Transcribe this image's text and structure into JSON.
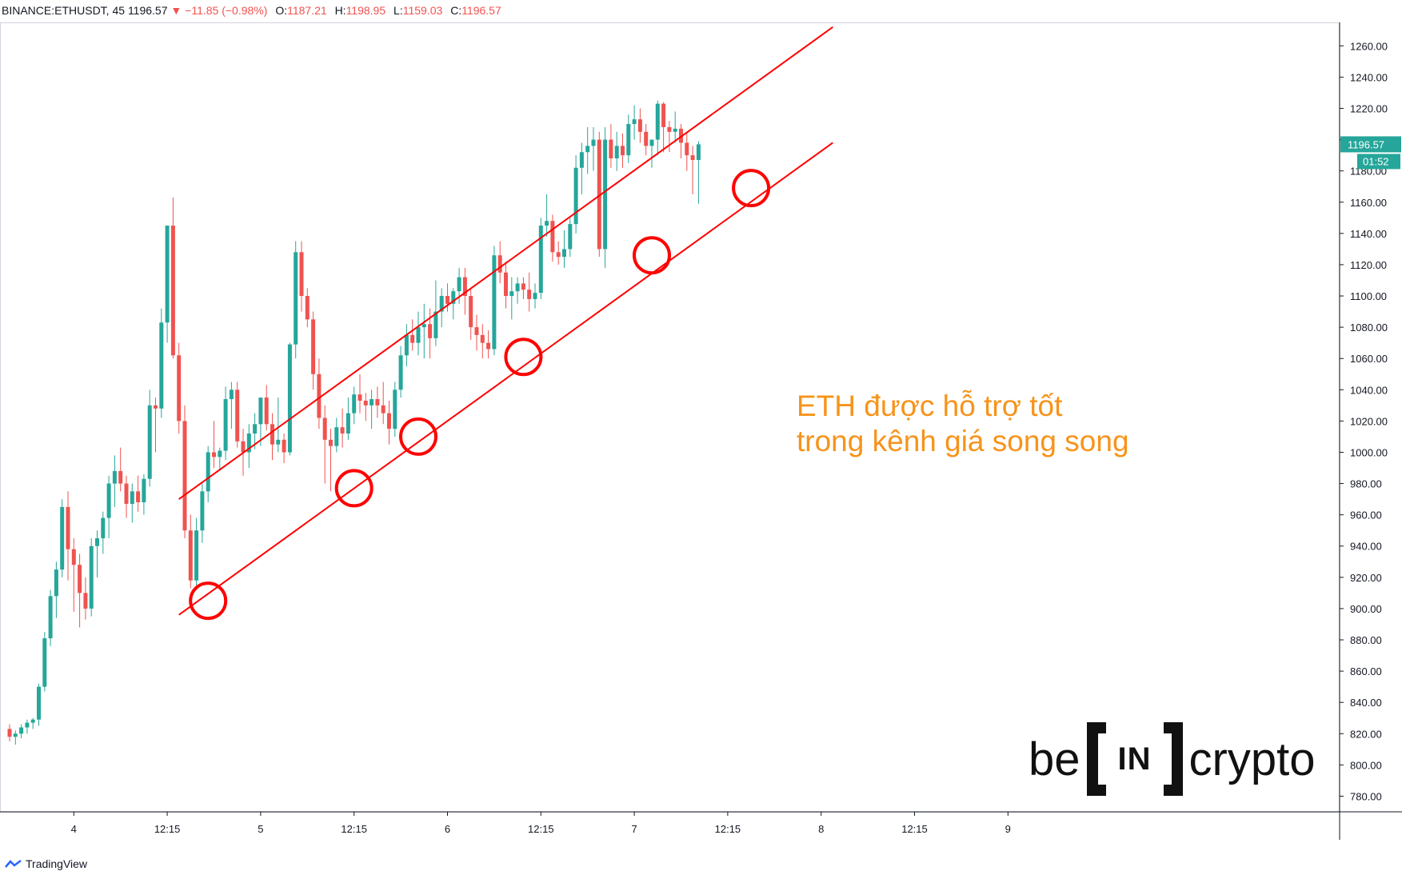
{
  "header": {
    "symbol": "BINANCE:ETHUSDT, 45",
    "price": "1196.57",
    "arrow": "▼",
    "change": "−11.85 (−0.98%)",
    "o_label": "O:",
    "o_value": "1187.21",
    "h_label": "H:",
    "h_value": "1198.95",
    "l_label": "L:",
    "l_value": "1159.03",
    "c_label": "C:",
    "c_value": "1196.57"
  },
  "price_tag": {
    "value": "1196.57",
    "countdown": "01:52",
    "color": "#26a69a"
  },
  "annotation": {
    "line1": "ETH được hỗ trợ tốt",
    "line2": "trong kênh giá song song",
    "color": "#f7931a"
  },
  "logo": {
    "left": "be",
    "box": "IN",
    "right": "crypto"
  },
  "footer": {
    "brand": "TradingView"
  },
  "chart_data": {
    "type": "candlestick",
    "title": "",
    "ylim": [
      770,
      1275
    ],
    "y_ticks": [
      "1260.00",
      "1240.00",
      "1220.00",
      "1200.00",
      "1180.00",
      "1160.00",
      "1140.00",
      "1120.00",
      "1100.00",
      "1080.00",
      "1060.00",
      "1040.00",
      "1020.00",
      "1000.00",
      "980.00",
      "960.00",
      "940.00",
      "920.00",
      "900.00",
      "880.00",
      "860.00",
      "840.00",
      "820.00",
      "800.00",
      "780.00"
    ],
    "x_ticks": [
      {
        "label": "4",
        "bar": 11
      },
      {
        "label": "12:15",
        "bar": 27
      },
      {
        "label": "5",
        "bar": 43
      },
      {
        "label": "12:15",
        "bar": 59
      },
      {
        "label": "6",
        "bar": 75
      },
      {
        "label": "12:15",
        "bar": 91
      },
      {
        "label": "7",
        "bar": 107
      },
      {
        "label": "12:15",
        "bar": 123
      },
      {
        "label": "8",
        "bar": 139
      },
      {
        "label": "12:15",
        "bar": 155
      },
      {
        "label": "9",
        "bar": 171
      }
    ],
    "colors": {
      "up": "#26a69a",
      "down": "#ef5350",
      "channel": "#ff0000"
    },
    "candles": [
      [
        823,
        826,
        815,
        818
      ],
      [
        818,
        822,
        813,
        820
      ],
      [
        820,
        826,
        817,
        824
      ],
      [
        824,
        829,
        820,
        827
      ],
      [
        827,
        830,
        823,
        829
      ],
      [
        829,
        852,
        825,
        850
      ],
      [
        850,
        885,
        847,
        881
      ],
      [
        881,
        912,
        876,
        908
      ],
      [
        908,
        930,
        894,
        925
      ],
      [
        925,
        970,
        920,
        965
      ],
      [
        965,
        975,
        918,
        938
      ],
      [
        938,
        945,
        898,
        928
      ],
      [
        928,
        935,
        888,
        910
      ],
      [
        910,
        920,
        893,
        900
      ],
      [
        900,
        945,
        895,
        940
      ],
      [
        940,
        950,
        920,
        945
      ],
      [
        945,
        962,
        935,
        958
      ],
      [
        958,
        985,
        945,
        980
      ],
      [
        980,
        998,
        965,
        988
      ],
      [
        988,
        1003,
        975,
        980
      ],
      [
        980,
        985,
        958,
        967
      ],
      [
        967,
        980,
        955,
        975
      ],
      [
        975,
        985,
        962,
        968
      ],
      [
        968,
        986,
        960,
        983
      ],
      [
        983,
        1040,
        978,
        1030
      ],
      [
        1030,
        1035,
        1000,
        1028
      ],
      [
        1028,
        1092,
        1022,
        1083
      ],
      [
        1083,
        1140,
        1070,
        1145
      ],
      [
        1145,
        1163,
        1060,
        1062
      ],
      [
        1062,
        1070,
        1012,
        1020
      ],
      [
        1020,
        1030,
        945,
        950
      ],
      [
        950,
        960,
        913,
        918
      ],
      [
        918,
        958,
        912,
        950
      ],
      [
        950,
        980,
        942,
        975
      ],
      [
        975,
        1004,
        968,
        1000
      ],
      [
        1000,
        1020,
        990,
        997
      ],
      [
        997,
        1003,
        988,
        1001
      ],
      [
        1001,
        1042,
        995,
        1034
      ],
      [
        1034,
        1045,
        1015,
        1040
      ],
      [
        1040,
        1045,
        1003,
        1007
      ],
      [
        1007,
        1015,
        985,
        1000
      ],
      [
        1000,
        1018,
        990,
        1012
      ],
      [
        1012,
        1025,
        1002,
        1018
      ],
      [
        1018,
        1030,
        1004,
        1035
      ],
      [
        1035,
        1043,
        1014,
        1018
      ],
      [
        1018,
        1025,
        995,
        1005
      ],
      [
        1005,
        1035,
        1000,
        1008
      ],
      [
        1008,
        1012,
        993,
        1000
      ],
      [
        1000,
        1070,
        998,
        1069
      ],
      [
        1069,
        1135,
        1060,
        1128
      ],
      [
        1128,
        1135,
        1090,
        1100
      ],
      [
        1100,
        1105,
        1080,
        1085
      ],
      [
        1085,
        1090,
        1040,
        1050
      ],
      [
        1050,
        1060,
        1015,
        1022
      ],
      [
        1022,
        1030,
        980,
        1008
      ],
      [
        1008,
        1015,
        975,
        1004
      ],
      [
        1004,
        1022,
        1000,
        1016
      ],
      [
        1016,
        1028,
        1003,
        1012
      ],
      [
        1012,
        1035,
        1008,
        1025
      ],
      [
        1025,
        1042,
        1018,
        1037
      ],
      [
        1037,
        1050,
        1025,
        1033
      ],
      [
        1033,
        1038,
        1020,
        1030
      ],
      [
        1030,
        1040,
        1015,
        1034
      ],
      [
        1034,
        1042,
        1022,
        1030
      ],
      [
        1030,
        1045,
        1018,
        1025
      ],
      [
        1025,
        1033,
        1005,
        1015
      ],
      [
        1015,
        1045,
        1010,
        1040
      ],
      [
        1040,
        1068,
        1035,
        1062
      ],
      [
        1062,
        1082,
        1055,
        1075
      ],
      [
        1075,
        1085,
        1065,
        1070
      ],
      [
        1070,
        1090,
        1062,
        1080
      ],
      [
        1080,
        1095,
        1060,
        1082
      ],
      [
        1082,
        1092,
        1060,
        1073
      ],
      [
        1073,
        1110,
        1068,
        1090
      ],
      [
        1090,
        1105,
        1080,
        1100
      ],
      [
        1100,
        1108,
        1090,
        1095
      ],
      [
        1095,
        1105,
        1085,
        1103
      ],
      [
        1103,
        1118,
        1095,
        1112
      ],
      [
        1112,
        1118,
        1088,
        1100
      ],
      [
        1100,
        1105,
        1072,
        1080
      ],
      [
        1080,
        1088,
        1065,
        1075
      ],
      [
        1075,
        1082,
        1060,
        1070
      ],
      [
        1070,
        1078,
        1060,
        1066
      ],
      [
        1066,
        1132,
        1062,
        1126
      ],
      [
        1126,
        1135,
        1108,
        1115
      ],
      [
        1115,
        1122,
        1092,
        1100
      ],
      [
        1100,
        1112,
        1085,
        1103
      ],
      [
        1103,
        1112,
        1095,
        1108
      ],
      [
        1108,
        1112,
        1098,
        1104
      ],
      [
        1104,
        1115,
        1090,
        1098
      ],
      [
        1098,
        1108,
        1092,
        1102
      ],
      [
        1102,
        1150,
        1098,
        1145
      ],
      [
        1145,
        1165,
        1138,
        1148
      ],
      [
        1148,
        1152,
        1122,
        1128
      ],
      [
        1128,
        1135,
        1120,
        1125
      ],
      [
        1125,
        1142,
        1118,
        1130
      ],
      [
        1130,
        1150,
        1125,
        1146
      ],
      [
        1146,
        1190,
        1140,
        1182
      ],
      [
        1182,
        1198,
        1165,
        1192
      ],
      [
        1192,
        1208,
        1178,
        1196
      ],
      [
        1196,
        1208,
        1180,
        1200
      ],
      [
        1200,
        1205,
        1125,
        1130
      ],
      [
        1130,
        1208,
        1118,
        1200
      ],
      [
        1200,
        1210,
        1182,
        1188
      ],
      [
        1188,
        1205,
        1180,
        1196
      ],
      [
        1196,
        1204,
        1182,
        1190
      ],
      [
        1190,
        1216,
        1185,
        1210
      ],
      [
        1210,
        1222,
        1200,
        1213
      ],
      [
        1213,
        1220,
        1198,
        1205
      ],
      [
        1205,
        1210,
        1190,
        1196
      ],
      [
        1196,
        1200,
        1182,
        1200
      ],
      [
        1200,
        1225,
        1190,
        1223
      ],
      [
        1223,
        1224,
        1192,
        1208
      ],
      [
        1208,
        1212,
        1192,
        1205
      ],
      [
        1205,
        1218,
        1198,
        1207
      ],
      [
        1207,
        1210,
        1188,
        1198
      ],
      [
        1198,
        1205,
        1180,
        1190
      ],
      [
        1190,
        1196,
        1165,
        1187
      ],
      [
        1187,
        1199,
        1159,
        1197
      ]
    ],
    "channel_lines": [
      {
        "name": "upper",
        "from": {
          "bar": 29,
          "price": 970
        },
        "to": {
          "bar": 141,
          "price": 1272
        }
      },
      {
        "name": "lower",
        "from": {
          "bar": 29,
          "price": 896
        },
        "to": {
          "bar": 141,
          "price": 1198
        }
      }
    ],
    "touch_points": [
      {
        "bar": 34,
        "price": 905
      },
      {
        "bar": 59,
        "price": 977
      },
      {
        "bar": 70,
        "price": 1010
      },
      {
        "bar": 88,
        "price": 1061
      },
      {
        "bar": 110,
        "price": 1126
      },
      {
        "bar": 127,
        "price": 1169
      }
    ]
  }
}
